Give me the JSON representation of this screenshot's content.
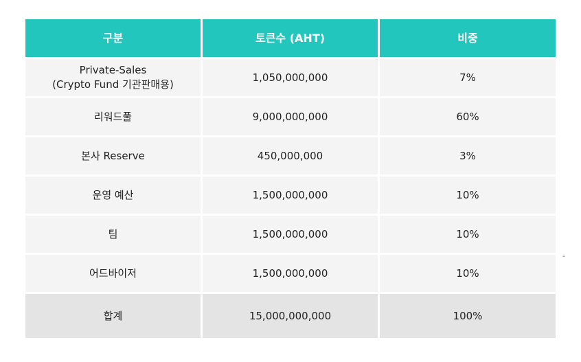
{
  "table": {
    "headers": [
      "구분",
      "토큰수 (AHT)",
      "비중"
    ],
    "rows": [
      {
        "category_line1": "Private-Sales",
        "category_line2": "(Crypto Fund 기관판매용)",
        "tokens": "1,050,000,000",
        "share": "7%"
      },
      {
        "category": "리워드풀",
        "tokens": "9,000,000,000",
        "share": "60%"
      },
      {
        "category": "본사 Reserve",
        "tokens": "450,000,000",
        "share": "3%"
      },
      {
        "category": "운영 예산",
        "tokens": "1,500,000,000",
        "share": "10%"
      },
      {
        "category": "팀",
        "tokens": "1,500,000,000",
        "share": "10%"
      },
      {
        "category": "어드바이저",
        "tokens": "1,500,000,000",
        "share": "10%"
      }
    ],
    "total": {
      "category": "합계",
      "tokens": "15,000,000,000",
      "share": "100%"
    }
  },
  "side_mark": "-",
  "colors": {
    "header_bg": "#22c6bd",
    "row_bg": "#f4f4f4",
    "total_bg": "#e4e4e4"
  }
}
